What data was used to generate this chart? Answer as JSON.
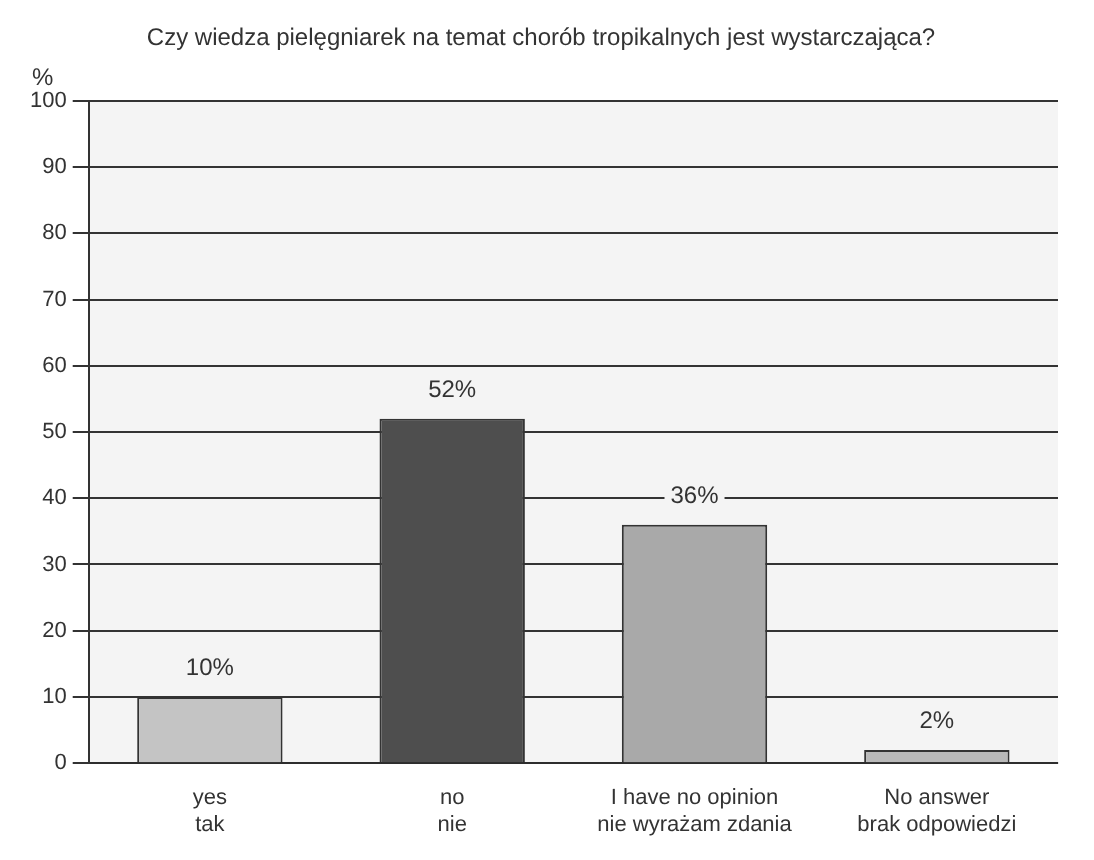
{
  "chart_data": {
    "type": "bar",
    "title": "Czy wiedza pielęgniarek na temat chorób tropikalnych jest wystarczająca?",
    "ylabel": "%",
    "categories": [
      "yes\ntak",
      "no\nnie",
      "I have no opinion\nnie wyrażam zdania",
      "No answer\nbrak odpowiedzi"
    ],
    "values": [
      10,
      52,
      36,
      2
    ],
    "colors": [
      "#c4c4c4",
      "#4e4e4e",
      "#a9a9a9",
      "#b9b9b9"
    ],
    "value_labels": [
      "10%",
      "52%",
      "36%",
      "2%"
    ],
    "ylim": [
      0,
      100
    ],
    "yticks": [
      0,
      10,
      20,
      30,
      40,
      50,
      60,
      70,
      80,
      90,
      100
    ],
    "grid": "y"
  }
}
